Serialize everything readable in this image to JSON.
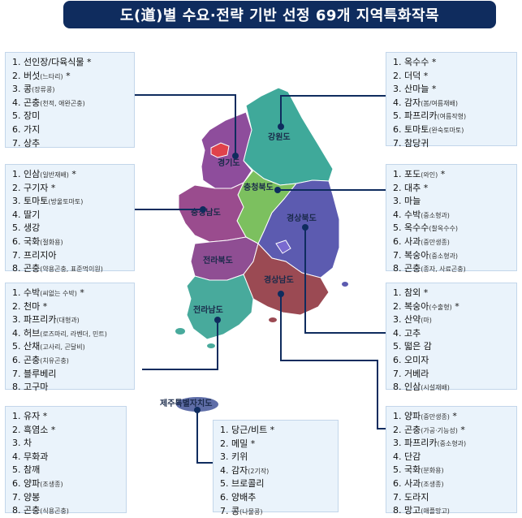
{
  "title": "도(道)별 수요·전략 기반 선정 69개 지역특화작목",
  "regions": {
    "gangwon": "강원도",
    "gyeonggi": "경기도",
    "chungbuk": "충청북도",
    "chungnam": "충청남도",
    "gyeongbuk": "경상북도",
    "jeonbuk": "전라북도",
    "gyeongnam": "경상남도",
    "jeonnam": "전라남도",
    "jeju": "제주특별자치도"
  },
  "boxes": [
    {
      "key": "gyeonggi",
      "items": [
        {
          "n": "1.",
          "name": "선인장/다육식물",
          "sub": "",
          "star": " *"
        },
        {
          "n": "2.",
          "name": "버섯",
          "sub": "(느타리)",
          "star": " *"
        },
        {
          "n": "3.",
          "name": "콩",
          "sub": "(장류콩)",
          "star": ""
        },
        {
          "n": "4.",
          "name": "곤충",
          "sub": "(천적, 애완곤충)",
          "star": ""
        },
        {
          "n": "5.",
          "name": "장미",
          "sub": "",
          "star": ""
        },
        {
          "n": "6.",
          "name": "가지",
          "sub": "",
          "star": ""
        },
        {
          "n": "7.",
          "name": "상추",
          "sub": "",
          "star": ""
        }
      ]
    },
    {
      "key": "chungnam",
      "items": [
        {
          "n": "1.",
          "name": "인삼",
          "sub": "(일반재배)",
          "star": " *"
        },
        {
          "n": "2.",
          "name": "구기자",
          "sub": "",
          "star": " *"
        },
        {
          "n": "3.",
          "name": "토마토",
          "sub": "(방울토마토)",
          "star": ""
        },
        {
          "n": "4.",
          "name": "딸기",
          "sub": "",
          "star": ""
        },
        {
          "n": "5.",
          "name": "생강",
          "sub": "",
          "star": ""
        },
        {
          "n": "6.",
          "name": "국화",
          "sub": "(절화용)",
          "star": ""
        },
        {
          "n": "7.",
          "name": "프리지아",
          "sub": "",
          "star": ""
        },
        {
          "n": "8.",
          "name": "곤충",
          "sub": "(약용곤충, 표준먹이원)",
          "star": ""
        }
      ]
    },
    {
      "key": "jeonbuk",
      "items": [
        {
          "n": "1.",
          "name": "수박",
          "sub": "(씨없는 수박)",
          "star": " *"
        },
        {
          "n": "2.",
          "name": "천마",
          "sub": "",
          "star": " *"
        },
        {
          "n": "3.",
          "name": "파프리카",
          "sub": "(대형과)",
          "star": ""
        },
        {
          "n": "4.",
          "name": "허브",
          "sub": "(로즈마리, 라벤더, 민트)",
          "star": ""
        },
        {
          "n": "5.",
          "name": "산채",
          "sub": "(고사리, 곤달비)",
          "star": ""
        },
        {
          "n": "6.",
          "name": "곤충",
          "sub": "(치유곤충)",
          "star": ""
        },
        {
          "n": "7.",
          "name": "블루베리",
          "sub": "",
          "star": ""
        },
        {
          "n": "8.",
          "name": "고구마",
          "sub": "",
          "star": ""
        }
      ]
    },
    {
      "key": "jeonnam",
      "items": [
        {
          "n": "1.",
          "name": "유자",
          "sub": "",
          "star": " *"
        },
        {
          "n": "2.",
          "name": "흑염소",
          "sub": "",
          "star": " *"
        },
        {
          "n": "3.",
          "name": "차",
          "sub": "",
          "star": ""
        },
        {
          "n": "4.",
          "name": "무화과",
          "sub": "",
          "star": ""
        },
        {
          "n": "5.",
          "name": "참깨",
          "sub": "",
          "star": ""
        },
        {
          "n": "6.",
          "name": "양파",
          "sub": "(조생종)",
          "star": ""
        },
        {
          "n": "7.",
          "name": "양봉",
          "sub": "",
          "star": ""
        },
        {
          "n": "8.",
          "name": "곤충",
          "sub": "(식용곤충)",
          "star": ""
        }
      ]
    },
    {
      "key": "jeju",
      "items": [
        {
          "n": "1.",
          "name": "당근/비트",
          "sub": "",
          "star": " *"
        },
        {
          "n": "2.",
          "name": "메밀",
          "sub": "",
          "star": " *"
        },
        {
          "n": "3.",
          "name": "키위",
          "sub": "",
          "star": ""
        },
        {
          "n": "4.",
          "name": "감자",
          "sub": "(2기작)",
          "star": ""
        },
        {
          "n": "5.",
          "name": "브로콜리",
          "sub": "",
          "star": ""
        },
        {
          "n": "6.",
          "name": "양배추",
          "sub": "",
          "star": ""
        },
        {
          "n": "7.",
          "name": "콩",
          "sub": "(나물콩)",
          "star": ""
        }
      ]
    },
    {
      "key": "gangwon",
      "items": [
        {
          "n": "1.",
          "name": "옥수수",
          "sub": "",
          "star": " *"
        },
        {
          "n": "2.",
          "name": "더덕",
          "sub": "",
          "star": " *"
        },
        {
          "n": "3.",
          "name": "산마늘",
          "sub": "",
          "star": " *"
        },
        {
          "n": "4.",
          "name": "감자",
          "sub": "(봄/여름재배)",
          "star": ""
        },
        {
          "n": "5.",
          "name": "파프리카",
          "sub": "(여름작형)",
          "star": ""
        },
        {
          "n": "6.",
          "name": "토마토",
          "sub": "(완숙토마토)",
          "star": ""
        },
        {
          "n": "7.",
          "name": "참당귀",
          "sub": "",
          "star": ""
        }
      ]
    },
    {
      "key": "chungbuk",
      "items": [
        {
          "n": "1.",
          "name": "포도",
          "sub": "(와인)",
          "star": " *"
        },
        {
          "n": "2.",
          "name": "대추",
          "sub": "",
          "star": " *"
        },
        {
          "n": "3.",
          "name": "마늘",
          "sub": "",
          "star": ""
        },
        {
          "n": "4.",
          "name": "수박",
          "sub": "(중소형과)",
          "star": ""
        },
        {
          "n": "5.",
          "name": "옥수수",
          "sub": "(찰옥수수)",
          "star": ""
        },
        {
          "n": "6.",
          "name": "사과",
          "sub": "(중만생종)",
          "star": ""
        },
        {
          "n": "7.",
          "name": "복숭아",
          "sub": "(중소형과)",
          "star": ""
        },
        {
          "n": "8.",
          "name": "곤충",
          "sub": "(종자, 사료곤충)",
          "star": ""
        }
      ]
    },
    {
      "key": "gyeongbuk",
      "items": [
        {
          "n": "1.",
          "name": "참외",
          "sub": "",
          "star": " *"
        },
        {
          "n": "2.",
          "name": "복숭아",
          "sub": "(수출형)",
          "star": " *"
        },
        {
          "n": "3.",
          "name": "산약",
          "sub": "(마)",
          "star": ""
        },
        {
          "n": "4.",
          "name": "고추",
          "sub": "",
          "star": ""
        },
        {
          "n": "5.",
          "name": "떫은 감",
          "sub": "",
          "star": ""
        },
        {
          "n": "6.",
          "name": "오미자",
          "sub": "",
          "star": ""
        },
        {
          "n": "7.",
          "name": "거베라",
          "sub": "",
          "star": ""
        },
        {
          "n": "8.",
          "name": "인삼",
          "sub": "(시설재배)",
          "star": ""
        }
      ]
    },
    {
      "key": "gyeongnam",
      "items": [
        {
          "n": "1.",
          "name": "양파",
          "sub": "(중만생종)",
          "star": " *"
        },
        {
          "n": "2.",
          "name": "곤충",
          "sub": "(가공·기능성)",
          "star": " *"
        },
        {
          "n": "3.",
          "name": "파프리카",
          "sub": "(중소형과)",
          "star": ""
        },
        {
          "n": "4.",
          "name": "단감",
          "sub": "",
          "star": ""
        },
        {
          "n": "5.",
          "name": "국화",
          "sub": "(분화용)",
          "star": ""
        },
        {
          "n": "6.",
          "name": "사과",
          "sub": "(조생종)",
          "star": ""
        },
        {
          "n": "7.",
          "name": "도라지",
          "sub": "",
          "star": ""
        },
        {
          "n": "8.",
          "name": "망고",
          "sub": "(애플망고)",
          "star": ""
        }
      ]
    }
  ],
  "colors": {
    "title_bg": "#0f2c5e",
    "gangwon": "#3fa99a",
    "gyeonggi": "#8e4d9c",
    "chungbuk": "#7cc05f",
    "chungnam": "#9a4c8e",
    "gyeongbuk": "#5c5bb0",
    "jeonbuk": "#8f4e93",
    "gyeongnam": "#9b4a53",
    "jeonnam": "#48aa9c",
    "jeju": "#5f6ea8"
  }
}
